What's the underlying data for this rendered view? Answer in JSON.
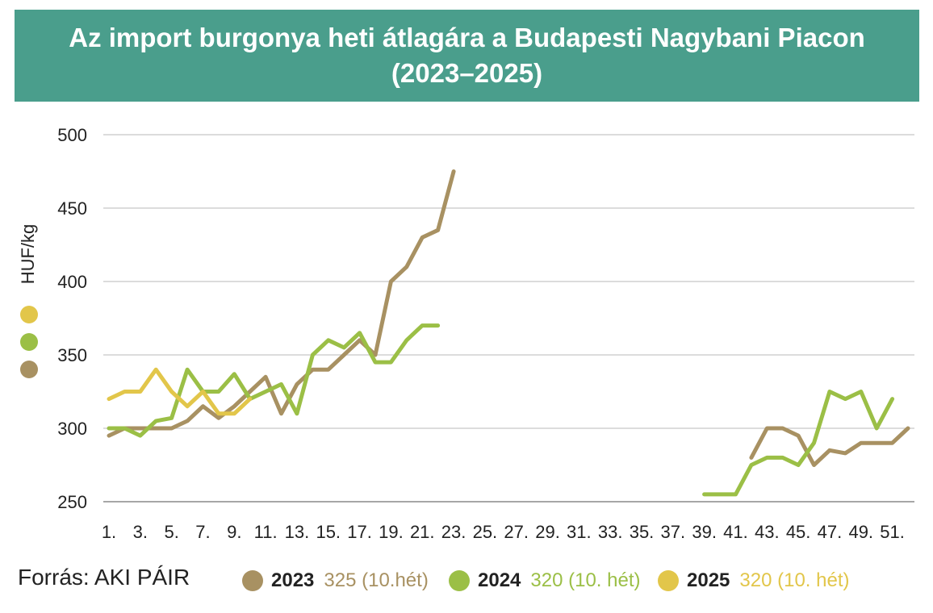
{
  "header": {
    "title_line1": "Az import burgonya heti átlagára a Budapesti Nagybani Piacon",
    "title_line2": "(2023–2025)"
  },
  "source": "Forrás: AKI PÁIR",
  "legend": [
    {
      "year": "2023",
      "note": "325 (10.hét)",
      "color": "#a89162"
    },
    {
      "year": "2024",
      "note": "320 (10. hét)",
      "color": "#9bbf46"
    },
    {
      "year": "2025",
      "note": "320 (10. hét)",
      "color": "#e2c64a"
    }
  ],
  "chart_data": {
    "type": "line",
    "ylabel": "HUF/kg",
    "ylim": [
      250,
      500
    ],
    "yticks": [
      250,
      300,
      350,
      400,
      450,
      500
    ],
    "xlim": [
      1,
      52
    ],
    "xtick_labels": [
      "1.",
      "3.",
      "5.",
      "7.",
      "9.",
      "11.",
      "13.",
      "15.",
      "17.",
      "19.",
      "21.",
      "23.",
      "25.",
      "27.",
      "29.",
      "31.",
      "33.",
      "35.",
      "37.",
      "39.",
      "41.",
      "43.",
      "45.",
      "47.",
      "49.",
      "51."
    ],
    "grid": true,
    "series": [
      {
        "name": "2023",
        "color": "#a89162",
        "segments": [
          [
            [
              1,
              295
            ],
            [
              2,
              300
            ],
            [
              3,
              300
            ],
            [
              4,
              300
            ],
            [
              5,
              300
            ],
            [
              6,
              305
            ],
            [
              7,
              315
            ],
            [
              8,
              307
            ],
            [
              9,
              315
            ],
            [
              10,
              325
            ],
            [
              11,
              335
            ],
            [
              12,
              310
            ],
            [
              13,
              330
            ],
            [
              14,
              340
            ],
            [
              15,
              340
            ],
            [
              16,
              350
            ],
            [
              17,
              360
            ],
            [
              18,
              350
            ],
            [
              19,
              400
            ],
            [
              20,
              410
            ],
            [
              21,
              430
            ],
            [
              22,
              435
            ],
            [
              23,
              475
            ]
          ],
          [
            [
              42,
              280
            ],
            [
              43,
              300
            ],
            [
              44,
              300
            ],
            [
              45,
              295
            ],
            [
              46,
              275
            ],
            [
              47,
              285
            ],
            [
              48,
              283
            ],
            [
              49,
              290
            ],
            [
              50,
              290
            ],
            [
              51,
              290
            ],
            [
              52,
              300
            ]
          ]
        ]
      },
      {
        "name": "2024",
        "color": "#9bbf46",
        "segments": [
          [
            [
              1,
              300
            ],
            [
              2,
              300
            ],
            [
              3,
              295
            ],
            [
              4,
              305
            ],
            [
              5,
              307
            ],
            [
              6,
              340
            ],
            [
              7,
              325
            ],
            [
              8,
              325
            ],
            [
              9,
              337
            ],
            [
              10,
              320
            ],
            [
              11,
              325
            ],
            [
              12,
              330
            ],
            [
              13,
              310
            ],
            [
              14,
              350
            ],
            [
              15,
              360
            ],
            [
              16,
              355
            ],
            [
              17,
              365
            ],
            [
              18,
              345
            ],
            [
              19,
              345
            ],
            [
              20,
              360
            ],
            [
              21,
              370
            ],
            [
              22,
              370
            ]
          ],
          [
            [
              39,
              255
            ],
            [
              40,
              255
            ],
            [
              41,
              255
            ],
            [
              42,
              275
            ],
            [
              43,
              280
            ],
            [
              44,
              280
            ],
            [
              45,
              275
            ],
            [
              46,
              290
            ],
            [
              47,
              325
            ],
            [
              48,
              320
            ],
            [
              49,
              325
            ],
            [
              50,
              300
            ],
            [
              51,
              320
            ]
          ]
        ]
      },
      {
        "name": "2025",
        "color": "#e2c64a",
        "segments": [
          [
            [
              1,
              320
            ],
            [
              2,
              325
            ],
            [
              3,
              325
            ],
            [
              4,
              340
            ],
            [
              5,
              325
            ],
            [
              6,
              315
            ],
            [
              7,
              325
            ],
            [
              8,
              310
            ],
            [
              9,
              310
            ],
            [
              10,
              320
            ]
          ]
        ]
      }
    ]
  }
}
